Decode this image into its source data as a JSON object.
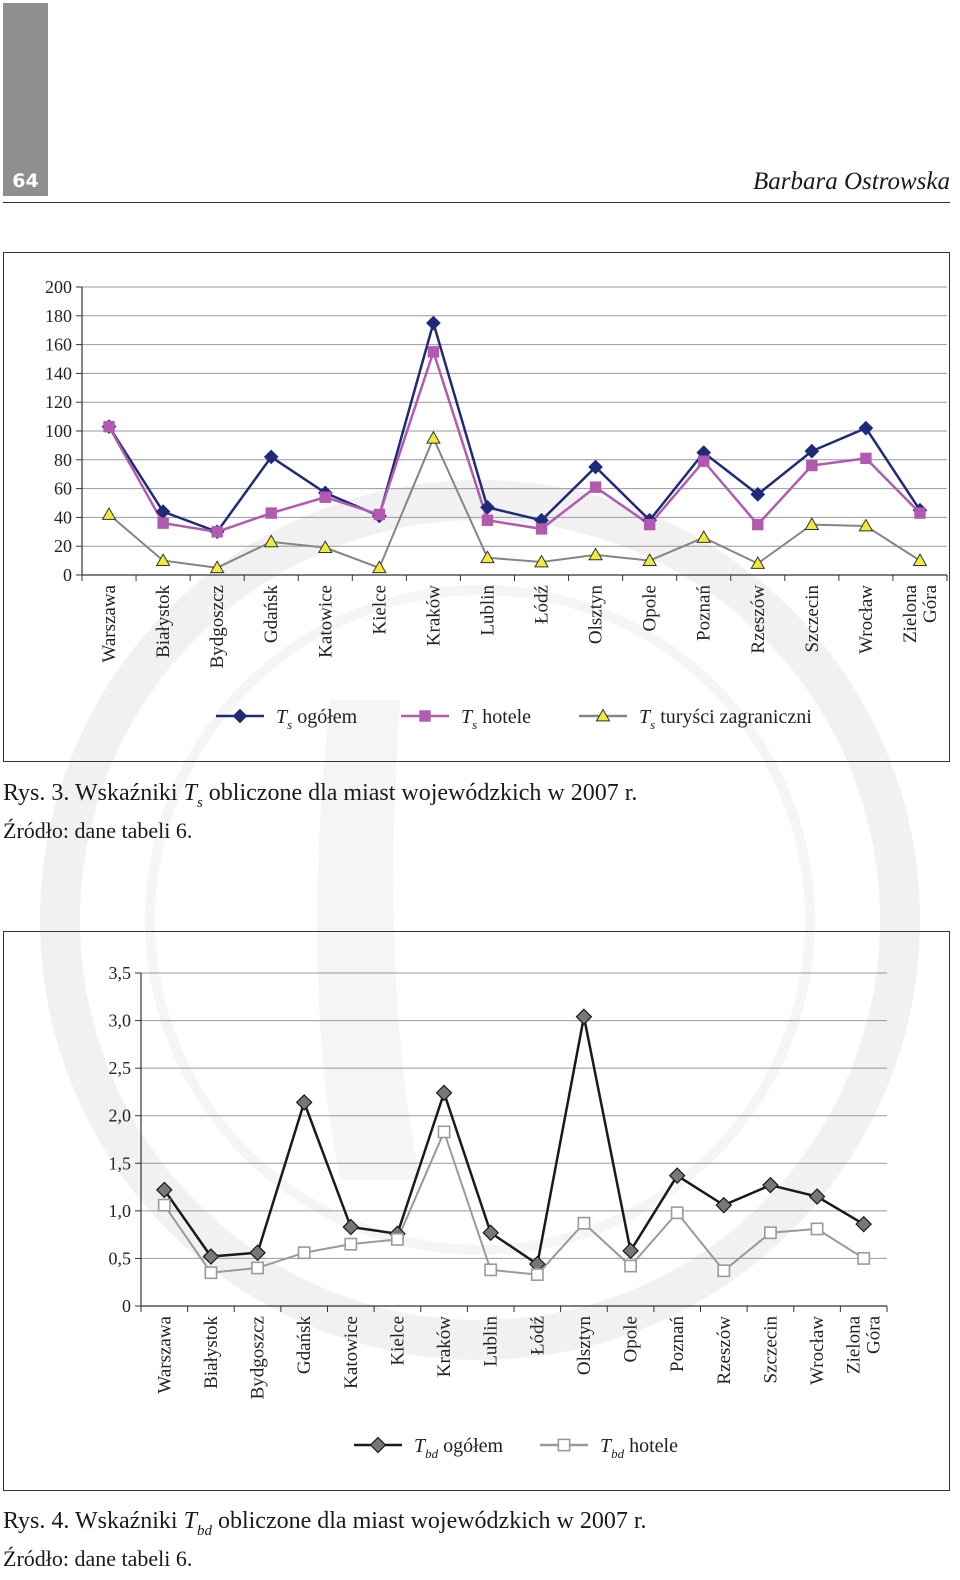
{
  "header": {
    "page_number": "64",
    "author": "Barbara Ostrowska"
  },
  "figure3": {
    "caption_prefix": "Rys. 3. Wskaźniki ",
    "caption_symbol": "T",
    "caption_subscript": "s",
    "caption_suffix": " obliczone dla miast wojewódzkich w 2007 r.",
    "source": "Źródło: dane tabeli 6."
  },
  "figure4": {
    "caption_prefix": "Rys. 4. Wskaźniki ",
    "caption_symbol": "T",
    "caption_subscript": "bd",
    "caption_suffix": " obliczone dla miast wojewódzkich w 2007 r.",
    "source": "Źródło: dane tabeli 6."
  },
  "chart_data": [
    {
      "type": "line",
      "categories": [
        "Warszawa",
        "Białystok",
        "Bydgoszcz",
        "Gdańsk",
        "Katowice",
        "Kielce",
        "Kraków",
        "Lublin",
        "Łódź",
        "Olsztyn",
        "Opole",
        "Poznań",
        "Rzeszów",
        "Szczecin",
        "Wrocław",
        "Zielona Góra"
      ],
      "category_lines": [
        [
          "Warszawa"
        ],
        [
          "Białystok"
        ],
        [
          "Bydgoszcz"
        ],
        [
          "Gdańsk"
        ],
        [
          "Katowice"
        ],
        [
          "Kielce"
        ],
        [
          "Kraków"
        ],
        [
          "Lublin"
        ],
        [
          "Łódź"
        ],
        [
          "Olsztyn"
        ],
        [
          "Opole"
        ],
        [
          "Poznań"
        ],
        [
          "Rzeszów"
        ],
        [
          "Szczecin"
        ],
        [
          "Wrocław"
        ],
        [
          "Zielona",
          "Góra"
        ]
      ],
      "yticks": [
        "0",
        "20",
        "40",
        "60",
        "80",
        "100",
        "120",
        "140",
        "160",
        "180",
        "200"
      ],
      "ylim": [
        0,
        200
      ],
      "grid": true,
      "legend_position": "bottom",
      "series": [
        {
          "name": "ogółem",
          "symbol": "T",
          "subscript": "s",
          "marker": "diamond",
          "color": "#1f2a78",
          "values": [
            103,
            44,
            30,
            82,
            57,
            41,
            175,
            47,
            38,
            75,
            38,
            85,
            56,
            86,
            102,
            45
          ]
        },
        {
          "name": "hotele",
          "symbol": "T",
          "subscript": "s",
          "marker": "square",
          "color": "#b15bb0",
          "values": [
            103,
            36,
            30,
            43,
            54,
            42,
            155,
            38,
            32,
            61,
            35,
            79,
            35,
            76,
            81,
            43
          ]
        },
        {
          "name": "turyści zagraniczni",
          "symbol": "T",
          "subscript": "s",
          "marker": "triangle",
          "color": "#858585",
          "fill": "#f2ea3a",
          "values": [
            42,
            10,
            5,
            23,
            19,
            5,
            95,
            12,
            9,
            14,
            10,
            26,
            8,
            35,
            34,
            10
          ]
        }
      ]
    },
    {
      "type": "line",
      "categories": [
        "Warszawa",
        "Białystok",
        "Bydgoszcz",
        "Gdańsk",
        "Katowice",
        "Kielce",
        "Kraków",
        "Lublin",
        "Łódź",
        "Olsztyn",
        "Opole",
        "Poznań",
        "Rzeszów",
        "Szczecin",
        "Wrocław",
        "Zielona Góra"
      ],
      "category_lines": [
        [
          "Warszawa"
        ],
        [
          "Białystok"
        ],
        [
          "Bydgoszcz"
        ],
        [
          "Gdańsk"
        ],
        [
          "Katowice"
        ],
        [
          "Kielce"
        ],
        [
          "Kraków"
        ],
        [
          "Lublin"
        ],
        [
          "Łódź"
        ],
        [
          "Olsztyn"
        ],
        [
          "Opole"
        ],
        [
          "Poznań"
        ],
        [
          "Rzeszów"
        ],
        [
          "Szczecin"
        ],
        [
          "Wrocław"
        ],
        [
          "Zielona",
          "Góra"
        ]
      ],
      "yticks": [
        "0",
        "0,5",
        "1,0",
        "1,5",
        "2,0",
        "2,5",
        "3,0",
        "3,5"
      ],
      "ylim": [
        0,
        3.5
      ],
      "grid": true,
      "legend_position": "bottom",
      "series": [
        {
          "name": "ogółem",
          "symbol": "T",
          "subscript": "bd",
          "marker": "diamond",
          "color": "#1a1a1a",
          "fill": "#777777",
          "values": [
            1.22,
            0.52,
            0.56,
            2.14,
            0.83,
            0.76,
            2.24,
            0.77,
            0.44,
            3.04,
            0.58,
            1.37,
            1.06,
            1.27,
            1.15,
            0.86
          ]
        },
        {
          "name": "hotele",
          "symbol": "T",
          "subscript": "bd",
          "marker": "square-open",
          "color": "#9a9a9a",
          "values": [
            1.06,
            0.35,
            0.4,
            0.56,
            0.65,
            0.7,
            1.83,
            0.38,
            0.33,
            0.87,
            0.42,
            0.98,
            0.37,
            0.77,
            0.81,
            0.5
          ]
        }
      ]
    }
  ]
}
